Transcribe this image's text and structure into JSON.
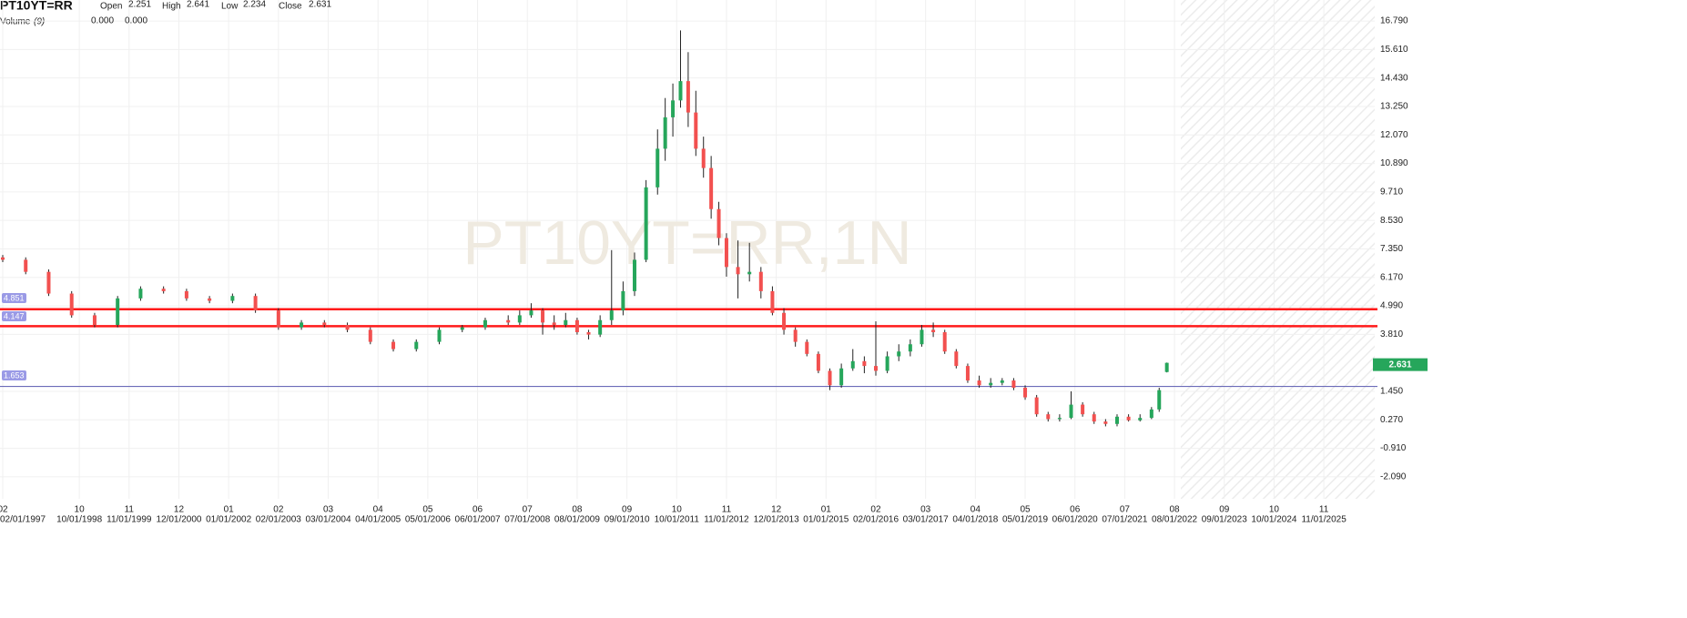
{
  "chart_data": {
    "type": "candlestick",
    "symbol": "PT10YT=RR",
    "watermark": "PT10YT=RR,1N",
    "header_labels": [
      "Open",
      "High",
      "Low",
      "Close"
    ],
    "volume_label": "Volume",
    "volume_period": "(9)",
    "volume_values": [
      {
        "value": 0,
        "label": "0.000",
        "color": "#f2504f"
      },
      {
        "value": 0,
        "label": "0.000",
        "color": "#4a86e8"
      }
    ],
    "up_color": "#26a65b",
    "down_color": "#f2504f",
    "xlim": [
      "02/01/1997",
      "01/01/2027"
    ],
    "ylim": [
      -3.0,
      17.66
    ],
    "yticks": [
      {
        "value": 16.79,
        "label": "16.790"
      },
      {
        "value": 15.61,
        "label": "15.610"
      },
      {
        "value": 14.43,
        "label": "14.430"
      },
      {
        "value": 13.25,
        "label": "13.250"
      },
      {
        "value": 12.07,
        "label": "12.070"
      },
      {
        "value": 10.89,
        "label": "10.890"
      },
      {
        "value": 9.71,
        "label": "9.710"
      },
      {
        "value": 8.53,
        "label": "8.530"
      },
      {
        "value": 7.35,
        "label": "7.350"
      },
      {
        "value": 6.17,
        "label": "6.170"
      },
      {
        "value": 4.99,
        "label": "4.990"
      },
      {
        "value": 3.81,
        "label": "3.810"
      },
      {
        "value": 1.45,
        "label": "1.450"
      },
      {
        "value": 0.27,
        "label": "0.270"
      },
      {
        "value": -0.91,
        "label": "-0.910"
      },
      {
        "value": -2.09,
        "label": "-2.090"
      }
    ],
    "xticks": [
      {
        "value": "02/01/1997",
        "label": "02"
      },
      {
        "value": "10/01/1998",
        "label": "10"
      },
      {
        "value": "11/01/1999",
        "label": "11"
      },
      {
        "value": "12/01/2000",
        "label": "12"
      },
      {
        "value": "01/01/2002",
        "label": "01"
      },
      {
        "value": "02/01/2003",
        "label": "02"
      },
      {
        "value": "03/01/2004",
        "label": "03"
      },
      {
        "value": "04/01/2005",
        "label": "04"
      },
      {
        "value": "05/01/2006",
        "label": "05"
      },
      {
        "value": "06/01/2007",
        "label": "06"
      },
      {
        "value": "07/01/2008",
        "label": "07"
      },
      {
        "value": "08/01/2009",
        "label": "08"
      },
      {
        "value": "09/01/2010",
        "label": "09"
      },
      {
        "value": "10/01/2011",
        "label": "10"
      },
      {
        "value": "11/01/2012",
        "label": "11"
      },
      {
        "value": "12/01/2013",
        "label": "12"
      },
      {
        "value": "01/01/2015",
        "label": "01"
      },
      {
        "value": "02/01/2016",
        "label": "02"
      },
      {
        "value": "03/01/2017",
        "label": "03"
      },
      {
        "value": "04/01/2018",
        "label": "04"
      },
      {
        "value": "05/01/2019",
        "label": "05"
      },
      {
        "value": "06/01/2020",
        "label": "06"
      },
      {
        "value": "07/01/2021",
        "label": "07"
      },
      {
        "value": "08/01/2022",
        "label": "08"
      },
      {
        "value": "09/01/2023",
        "label": "09"
      },
      {
        "value": "10/01/2024",
        "label": "10"
      },
      {
        "value": "11/01/2025",
        "label": "11"
      }
    ],
    "grid": true,
    "hlines": [
      {
        "value": 4.851,
        "color": "#ff1a1a"
      },
      {
        "value": 4.147,
        "color": "#ff1a1a"
      },
      {
        "value": 1.653,
        "color": "#6b6bb8"
      }
    ],
    "x": [
      "02/01/1997",
      "08/01/1997",
      "02/01/1998",
      "08/01/1998",
      "02/01/1999",
      "08/01/1999",
      "02/01/2000",
      "08/01/2000",
      "02/01/2001",
      "08/01/2001",
      "02/01/2002",
      "08/01/2002",
      "02/01/2003",
      "08/01/2003",
      "02/01/2004",
      "08/01/2004",
      "02/01/2005",
      "08/01/2005",
      "02/01/2006",
      "08/01/2006",
      "02/01/2007",
      "08/01/2007",
      "02/01/2008",
      "05/01/2008",
      "08/01/2008",
      "11/01/2008",
      "02/01/2009",
      "05/01/2009",
      "08/01/2009",
      "11/01/2009",
      "02/01/2010",
      "05/01/2010",
      "08/01/2010",
      "11/01/2010",
      "02/01/2011",
      "05/01/2011",
      "07/01/2011",
      "09/01/2011",
      "11/01/2011",
      "01/01/2012",
      "03/01/2012",
      "05/01/2012",
      "07/01/2012",
      "09/01/2012",
      "11/01/2012",
      "02/01/2013",
      "05/01/2013",
      "08/01/2013",
      "11/01/2013",
      "02/01/2014",
      "05/01/2014",
      "08/01/2014",
      "11/01/2014",
      "02/01/2015",
      "05/01/2015",
      "08/01/2015",
      "11/01/2015",
      "02/01/2016",
      "05/01/2016",
      "08/01/2016",
      "11/01/2016",
      "02/01/2017",
      "05/01/2017",
      "08/01/2017",
      "11/01/2017",
      "02/01/2018",
      "05/01/2018",
      "08/01/2018",
      "11/01/2018",
      "02/01/2019",
      "05/01/2019",
      "08/01/2019",
      "11/01/2019",
      "02/01/2020",
      "05/01/2020",
      "08/01/2020",
      "11/01/2020",
      "02/01/2021",
      "05/01/2021",
      "08/01/2021",
      "11/01/2021",
      "02/01/2022",
      "04/01/2022",
      "06/01/2022"
    ],
    "ohlc": [
      [
        7.0,
        7.1,
        6.8,
        6.9
      ],
      [
        6.9,
        7.0,
        6.3,
        6.4
      ],
      [
        6.4,
        6.5,
        5.4,
        5.5
      ],
      [
        5.5,
        5.6,
        4.5,
        4.6
      ],
      [
        4.6,
        4.7,
        4.1,
        4.2
      ],
      [
        4.2,
        5.4,
        4.1,
        5.3
      ],
      [
        5.3,
        5.8,
        5.2,
        5.7
      ],
      [
        5.7,
        5.8,
        5.5,
        5.6
      ],
      [
        5.6,
        5.7,
        5.2,
        5.3
      ],
      [
        5.3,
        5.4,
        5.1,
        5.2
      ],
      [
        5.2,
        5.5,
        5.1,
        5.4
      ],
      [
        5.4,
        5.5,
        4.7,
        4.8
      ],
      [
        4.8,
        4.9,
        4.0,
        4.1
      ],
      [
        4.1,
        4.4,
        4.0,
        4.3
      ],
      [
        4.3,
        4.4,
        4.1,
        4.2
      ],
      [
        4.2,
        4.3,
        3.9,
        4.0
      ],
      [
        4.0,
        4.1,
        3.4,
        3.5
      ],
      [
        3.5,
        3.6,
        3.1,
        3.2
      ],
      [
        3.2,
        3.6,
        3.1,
        3.5
      ],
      [
        3.5,
        4.1,
        3.4,
        4.0
      ],
      [
        4.0,
        4.2,
        3.9,
        4.1
      ],
      [
        4.1,
        4.5,
        4.0,
        4.4
      ],
      [
        4.4,
        4.6,
        4.2,
        4.3
      ],
      [
        4.3,
        4.8,
        4.2,
        4.6
      ],
      [
        4.6,
        5.1,
        4.5,
        4.8
      ],
      [
        4.8,
        4.9,
        3.8,
        4.3
      ],
      [
        4.3,
        4.6,
        4.0,
        4.2
      ],
      [
        4.2,
        4.7,
        4.1,
        4.4
      ],
      [
        4.4,
        4.5,
        3.8,
        3.9
      ],
      [
        3.9,
        4.0,
        3.6,
        3.8
      ],
      [
        3.8,
        4.6,
        3.7,
        4.4
      ],
      [
        4.4,
        7.3,
        4.2,
        4.8
      ],
      [
        4.8,
        6.0,
        4.6,
        5.6
      ],
      [
        5.6,
        7.2,
        5.4,
        6.9
      ],
      [
        6.9,
        10.2,
        6.8,
        9.9
      ],
      [
        9.9,
        12.3,
        9.6,
        11.5
      ],
      [
        11.5,
        13.6,
        11.0,
        12.8
      ],
      [
        12.8,
        14.2,
        12.0,
        13.5
      ],
      [
        13.5,
        16.4,
        13.2,
        14.3
      ],
      [
        14.3,
        15.5,
        12.4,
        13.0
      ],
      [
        13.0,
        13.9,
        11.2,
        11.5
      ],
      [
        11.5,
        12.0,
        10.3,
        10.7
      ],
      [
        10.7,
        11.2,
        8.6,
        9.0
      ],
      [
        9.0,
        9.3,
        7.5,
        7.8
      ],
      [
        7.8,
        8.0,
        6.2,
        6.6
      ],
      [
        6.6,
        7.7,
        5.3,
        6.3
      ],
      [
        6.3,
        7.6,
        6.0,
        6.4
      ],
      [
        6.4,
        6.6,
        5.3,
        5.6
      ],
      [
        5.6,
        5.8,
        4.6,
        4.7
      ],
      [
        4.7,
        4.9,
        3.8,
        4.0
      ],
      [
        4.0,
        4.1,
        3.3,
        3.5
      ],
      [
        3.5,
        3.6,
        2.9,
        3.0
      ],
      [
        3.0,
        3.1,
        2.2,
        2.3
      ],
      [
        2.3,
        2.4,
        1.5,
        1.7
      ],
      [
        1.7,
        2.6,
        1.6,
        2.4
      ],
      [
        2.4,
        3.2,
        2.3,
        2.7
      ],
      [
        2.7,
        2.9,
        2.2,
        2.5
      ],
      [
        2.5,
        4.35,
        2.1,
        2.3
      ],
      [
        2.3,
        3.1,
        2.2,
        2.9
      ],
      [
        2.9,
        3.4,
        2.7,
        3.1
      ],
      [
        3.1,
        3.6,
        2.9,
        3.4
      ],
      [
        3.4,
        4.2,
        3.3,
        4.0
      ],
      [
        4.0,
        4.3,
        3.7,
        3.9
      ],
      [
        3.9,
        4.0,
        3.0,
        3.1
      ],
      [
        3.1,
        3.2,
        2.4,
        2.5
      ],
      [
        2.5,
        2.6,
        1.8,
        1.9
      ],
      [
        1.9,
        2.1,
        1.6,
        1.7
      ],
      [
        1.7,
        2.0,
        1.6,
        1.8
      ],
      [
        1.8,
        2.0,
        1.7,
        1.9
      ],
      [
        1.9,
        2.0,
        1.5,
        1.6
      ],
      [
        1.6,
        1.7,
        1.1,
        1.2
      ],
      [
        1.2,
        1.3,
        0.4,
        0.5
      ],
      [
        0.5,
        0.6,
        0.2,
        0.3
      ],
      [
        0.3,
        0.5,
        0.2,
        0.35
      ],
      [
        0.35,
        1.45,
        0.3,
        0.9
      ],
      [
        0.9,
        1.0,
        0.4,
        0.5
      ],
      [
        0.5,
        0.6,
        0.1,
        0.2
      ],
      [
        0.2,
        0.3,
        0.0,
        0.1
      ],
      [
        0.1,
        0.5,
        0.0,
        0.4
      ],
      [
        0.4,
        0.5,
        0.2,
        0.25
      ],
      [
        0.25,
        0.5,
        0.2,
        0.35
      ],
      [
        0.35,
        0.8,
        0.3,
        0.7
      ],
      [
        0.7,
        1.6,
        0.6,
        1.5
      ],
      [
        2.251,
        2.641,
        2.234,
        2.631
      ]
    ]
  }
}
